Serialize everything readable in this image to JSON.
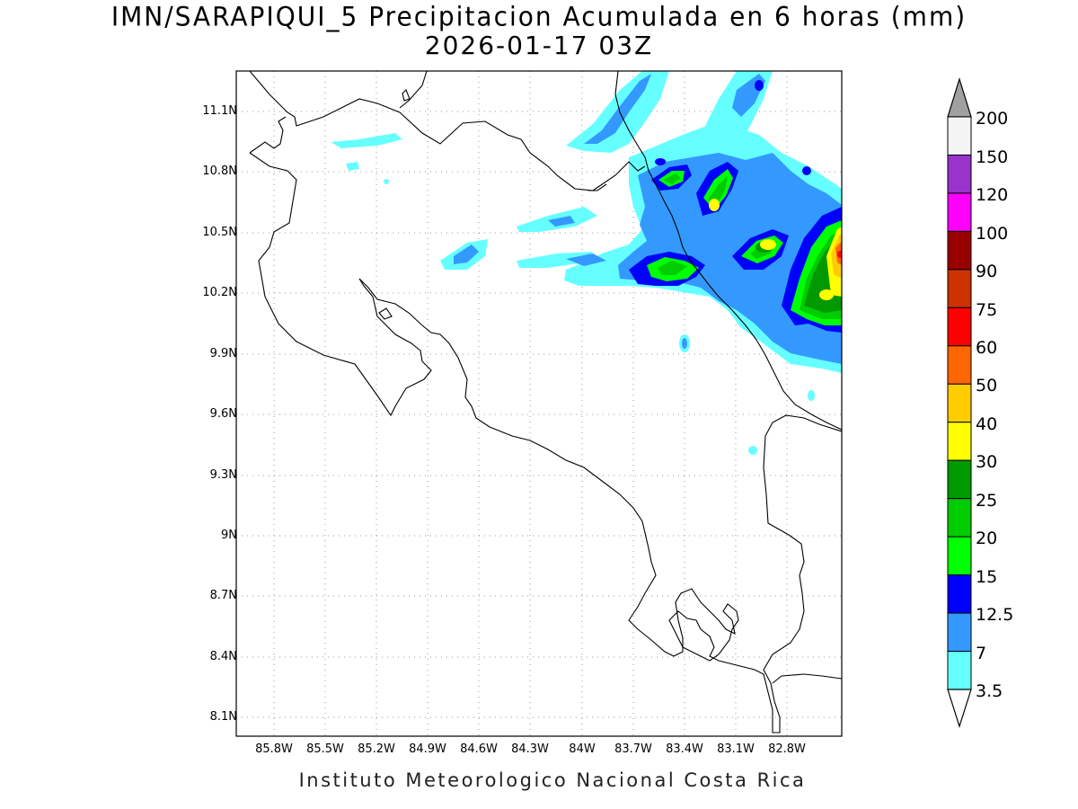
{
  "title": {
    "line1": "IMN/SARAPIQUI_5 Precipitacion Acumulada en 6 horas (mm)",
    "line2": "2026-01-17 03Z"
  },
  "footer": "Instituto Meteorologico Nacional Costa Rica",
  "map": {
    "lon_range": [
      -86.0,
      -82.6
    ],
    "lat_range": [
      8.0,
      11.2
    ],
    "grid": true,
    "lat_ticks": [
      "11.1N",
      "10.8N",
      "10.5N",
      "10.2N",
      "9.9N",
      "9.6N",
      "9.3N",
      "9N",
      "8.7N",
      "8.4N",
      "8.1N"
    ],
    "lon_ticks": [
      "85.8W",
      "85.5W",
      "85.2W",
      "84.9W",
      "84.6W",
      "84.3W",
      "84W",
      "83.7W",
      "83.4W",
      "83.1W",
      "82.8W"
    ]
  },
  "colorbar": {
    "labels": [
      "200",
      "150",
      "120",
      "100",
      "90",
      "75",
      "60",
      "50",
      "40",
      "30",
      "25",
      "20",
      "15",
      "12.5",
      "7",
      "3.5"
    ],
    "colors": [
      "#f4f4f4",
      "#9933cc",
      "#ff00ff",
      "#990000",
      "#cc3300",
      "#ff0000",
      "#ff6600",
      "#ffcc00",
      "#ffff00",
      "#009900",
      "#00cc00",
      "#00ff00",
      "#0000ff",
      "#3399ff",
      "#66ffff"
    ],
    "over_color": "#a0a0a0",
    "under_color": "#ffffff"
  }
}
